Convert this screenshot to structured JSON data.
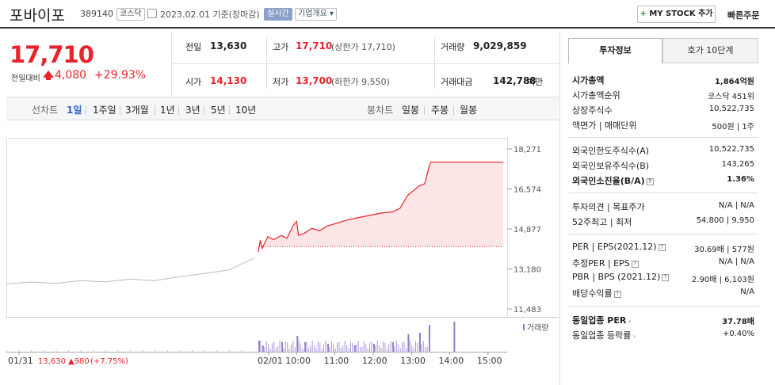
{
  "header": {
    "name": "포바이포",
    "code": "389140",
    "market": "코스닥",
    "date": "2023.02.01 기준(장마감)",
    "live": "실시간",
    "company_info": "기업개요 ▾",
    "mystock": "MY STOCK 추가",
    "mystock_plus": "+",
    "quick_order": "빠른주문"
  },
  "price": {
    "current": "17,710",
    "diff_label": "전일대비",
    "diff_amount": "4,080",
    "diff_percent": "+29.93%"
  },
  "summary": {
    "prev_label": "전일",
    "prev_value": "13,630",
    "high_label": "고가",
    "high_value": "17,710",
    "high_sub": "(상한가 17,710)",
    "volume_label": "거래량",
    "volume_value": "9,029,859",
    "open_label": "시가",
    "open_value": "14,130",
    "low_label": "저가",
    "low_value": "13,700",
    "low_sub": "(하한가 9,550)",
    "amount_label": "거래대금",
    "amount_value": "142,788",
    "amount_unit": "백만"
  },
  "periods": {
    "line_label": "선차트",
    "items": [
      "1일",
      "1주일",
      "3개월",
      "1년",
      "3년",
      "5년",
      "10년"
    ],
    "candle_label": "봉차트",
    "candle_items": [
      "일봉",
      "주봉",
      "월봉"
    ]
  },
  "tabs": {
    "invest": "투자정보",
    "hoga": "호가 10단계"
  },
  "invest": {
    "market_cap_label": "시가총액",
    "market_cap": "1,864억원",
    "cap_rank_label": "시가총액순위",
    "cap_rank": "코스닥 451위",
    "shares_label": "상장주식수",
    "shares": "10,522,735",
    "par_label": "액면가 | 매매단위",
    "par": "500원 | 1주",
    "foreign_limit_label": "외국인한도주식수(A)",
    "foreign_limit": "10,522,735",
    "foreign_hold_label": "외국인보유주식수(B)",
    "foreign_hold": "143,265",
    "foreign_ratio_label": "외국인소진율(B/A)",
    "foreign_ratio": "1.36%",
    "opinion_label": "투자의견 | 목표주가",
    "opinion": "N/A | N/A",
    "w52_label": "52주최고 | 최저",
    "w52": "54,800 | 9,950",
    "per_label": "PER | EPS(2021.12)",
    "per": "30.69배 | 577원",
    "est_per_label": "추정PER | EPS",
    "est_per": "N/A | N/A",
    "pbr_label": "PBR | BPS (2021.12)",
    "pbr": "2.90배 | 6,103원",
    "div_label": "배당수익률",
    "div": "N/A",
    "sector_per_label": "동일업종 PER",
    "sector_per": "37.78배",
    "sector_rate_label": "동일업종 등락률",
    "sector_rate": "+0.40%"
  },
  "chart_data": {
    "type": "line",
    "y_ticks": [
      "18,271",
      "16,574",
      "14,877",
      "13,180",
      "11,483"
    ],
    "ylim": [
      11483,
      18271
    ],
    "x_labels": [
      "01/31",
      "02/01",
      "10:00",
      "11:00",
      "12:00",
      "13:00",
      "14:00",
      "15:00"
    ],
    "prev_day_summary": {
      "close": "13,630",
      "change": "▲980",
      "pct": "(+7.75%)"
    },
    "volume_label": "거래량",
    "series": [
      {
        "name": "01/31",
        "x": [
          0,
          0.1,
          0.2,
          0.3,
          0.4,
          0.5,
          0.6,
          0.7,
          0.8,
          0.9,
          1.0
        ],
        "values": [
          12540,
          12560,
          12600,
          12650,
          12700,
          12680,
          12720,
          12850,
          12950,
          13200,
          13630
        ]
      },
      {
        "name": "02/01",
        "x": [
          9.0,
          9.05,
          9.1,
          9.25,
          9.4,
          9.6,
          9.75,
          9.9,
          10.0,
          10.05,
          10.2,
          10.4,
          10.6,
          10.8,
          11.0,
          11.3,
          11.6,
          11.9,
          12.2,
          12.5,
          12.7,
          12.9,
          13.05,
          13.2,
          13.35,
          13.45,
          13.5,
          15.4
        ],
        "values": [
          13900,
          14400,
          14050,
          14550,
          14420,
          14600,
          14480,
          15000,
          15200,
          14600,
          14700,
          14900,
          14800,
          15000,
          15100,
          15250,
          15350,
          15450,
          15550,
          15600,
          15750,
          16300,
          16500,
          16700,
          16800,
          17450,
          17710,
          17710
        ]
      }
    ],
    "volume_peaks": [
      {
        "t": 9.0,
        "v": 0.35
      },
      {
        "t": 9.1,
        "v": 0.2
      },
      {
        "t": 9.6,
        "v": 0.3
      },
      {
        "t": 10.0,
        "v": 0.5
      },
      {
        "t": 10.2,
        "v": 0.3
      },
      {
        "t": 10.8,
        "v": 0.25
      },
      {
        "t": 11.5,
        "v": 0.2
      },
      {
        "t": 12.0,
        "v": 0.25
      },
      {
        "t": 12.5,
        "v": 0.3
      },
      {
        "t": 12.9,
        "v": 0.55
      },
      {
        "t": 13.2,
        "v": 0.6
      },
      {
        "t": 13.45,
        "v": 0.85
      },
      {
        "t": 14.1,
        "v": 0.95
      }
    ]
  }
}
